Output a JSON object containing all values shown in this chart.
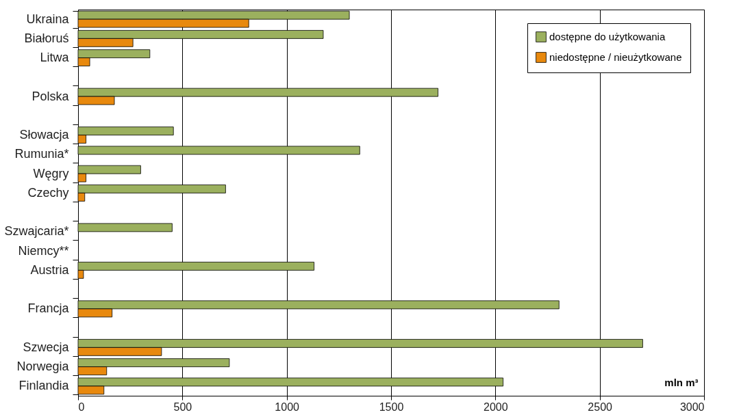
{
  "chart_data": {
    "type": "bar",
    "orientation": "horizontal",
    "xlabel": "mln m³",
    "categories": [
      "Ukraina",
      "Białoruś",
      "Litwa",
      null,
      "Polska",
      null,
      "Słowacja",
      "Rumunia*",
      "Węgry",
      "Czechy",
      null,
      "Szwajcaria*",
      "Niemcy**",
      "Austria",
      null,
      "Francja",
      null,
      "Szwecja",
      "Norwegia",
      "Finlandia"
    ],
    "series": [
      {
        "name": "dostępne do użytkowania",
        "color": "#9bb05e",
        "values": [
          1300,
          1175,
          344,
          null,
          1725,
          null,
          457,
          1350,
          300,
          707,
          null,
          451,
          null,
          1131,
          null,
          2305,
          null,
          2706,
          725,
          2037
        ]
      },
      {
        "name": "niedostępne / nieużytkowane",
        "color": "#e8890e",
        "values": [
          818,
          263,
          56,
          null,
          174,
          null,
          38,
          null,
          38,
          32,
          null,
          null,
          null,
          26,
          null,
          163,
          null,
          400,
          137,
          124
        ]
      }
    ],
    "xlim": [
      0,
      3000
    ],
    "xticks": [
      0,
      500,
      1000,
      1500,
      2000,
      2500,
      3000
    ],
    "grid": "x",
    "legend": "top right"
  }
}
